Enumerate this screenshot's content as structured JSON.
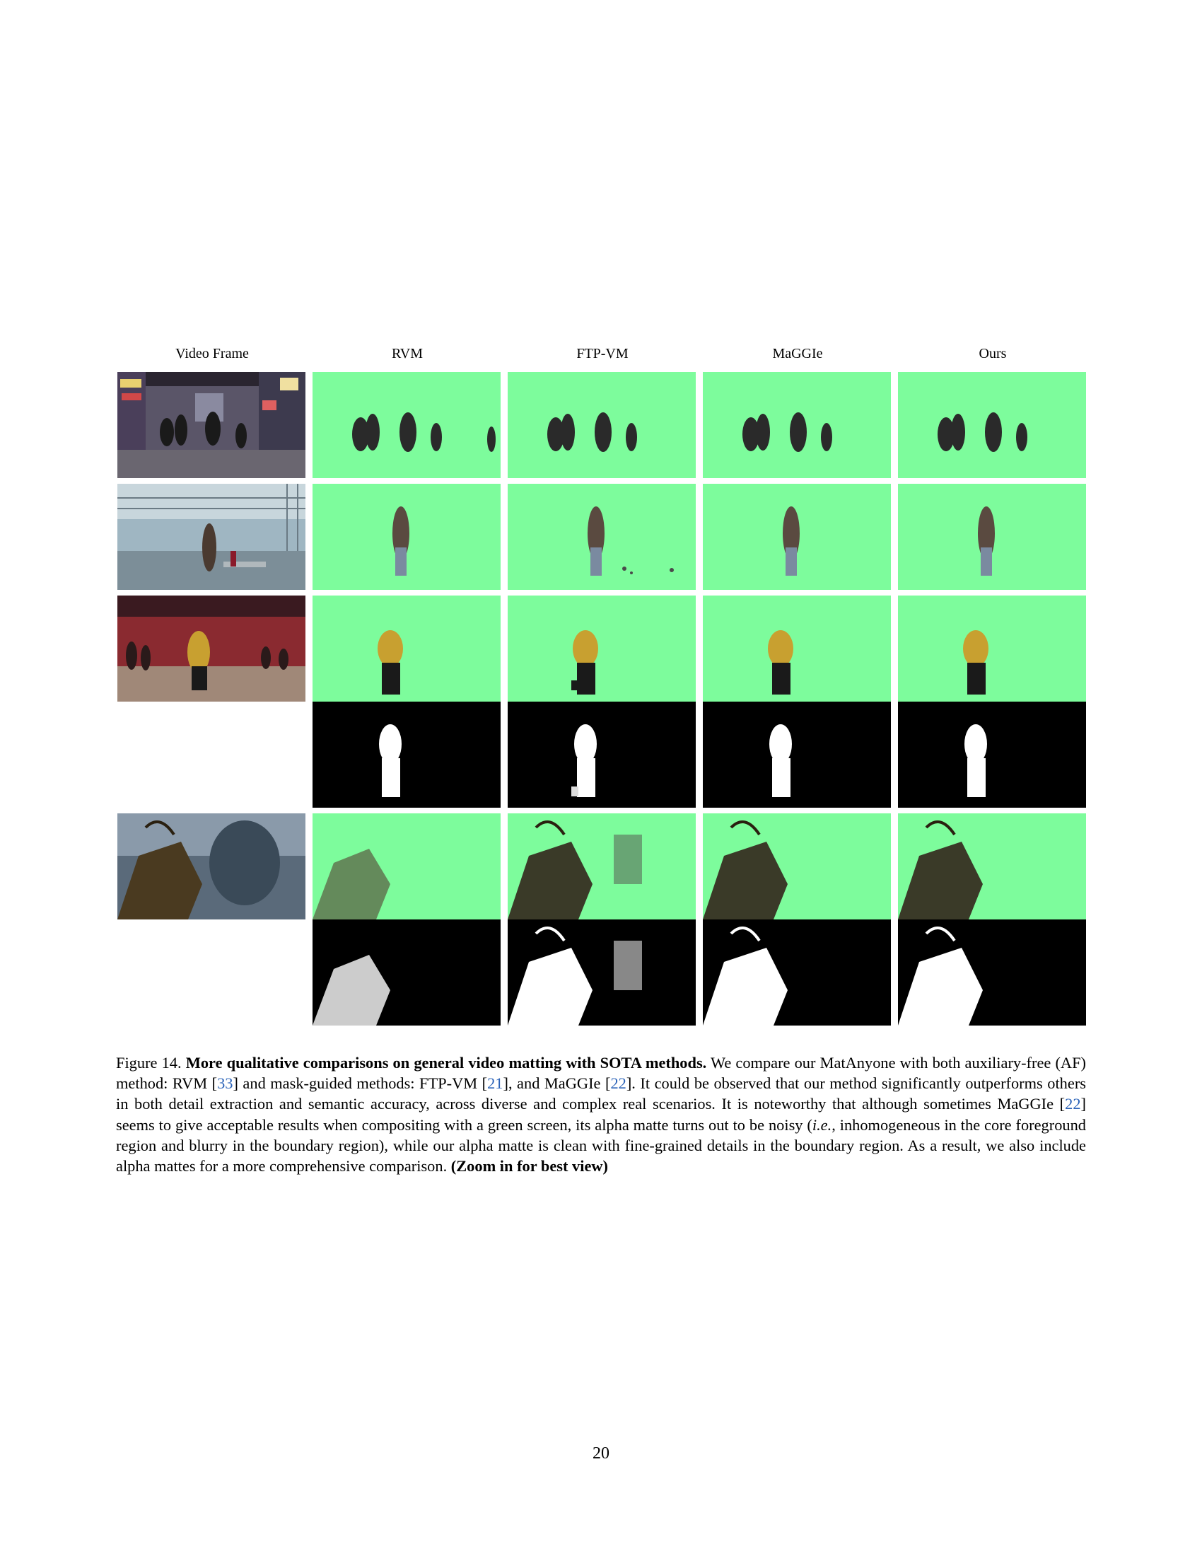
{
  "figure": {
    "columns": [
      "Video Frame",
      "RVM",
      "FTP-VM",
      "MaGGIe",
      "Ours"
    ],
    "rows": [
      {
        "name": "street-dance",
        "frame": "night street dancers",
        "outputs": [
          "composite"
        ]
      },
      {
        "name": "warehouse-man",
        "frame": "man in warehouse",
        "outputs": [
          "composite"
        ]
      },
      {
        "name": "studio-dancer",
        "frame": "dancer in red studio",
        "outputs": [
          "composite",
          "alpha"
        ]
      },
      {
        "name": "game-warrior",
        "frame": "armored warrior game scene",
        "outputs": [
          "composite",
          "alpha"
        ]
      }
    ],
    "colors": {
      "green_screen": "#7dfc9c",
      "alpha_bg": "#000000",
      "alpha_fg": "#ffffff"
    }
  },
  "caption": {
    "label": "Figure 14.",
    "bold_title": "More qualitative comparisons on general video matting with SOTA methods.",
    "t1": " We compare our MatAnyone with both auxiliary-free (AF) method: RVM [",
    "c1": "33",
    "t2": "] and mask-guided methods: FTP-VM [",
    "c2": "21",
    "t3": "], and MaGGIe [",
    "c3": "22",
    "t4": "]. It could be observed that our method significantly outperforms others in both detail extraction and semantic accuracy, across diverse and complex real scenarios. It is noteworthy that although sometimes MaGGIe [",
    "c4": "22",
    "t5": "] seems to give acceptable results when compositing with a green screen, its alpha matte turns out to be noisy (",
    "ie": "i.e.",
    "t6": ", inhomogeneous in the core foreground region and blurry in the boundary region), while our alpha matte is clean with fine-grained details in the boundary region. As a result, we also include alpha mattes for a more comprehensive comparison. ",
    "bold_end": "(Zoom in for best view)"
  },
  "page_number": "20"
}
